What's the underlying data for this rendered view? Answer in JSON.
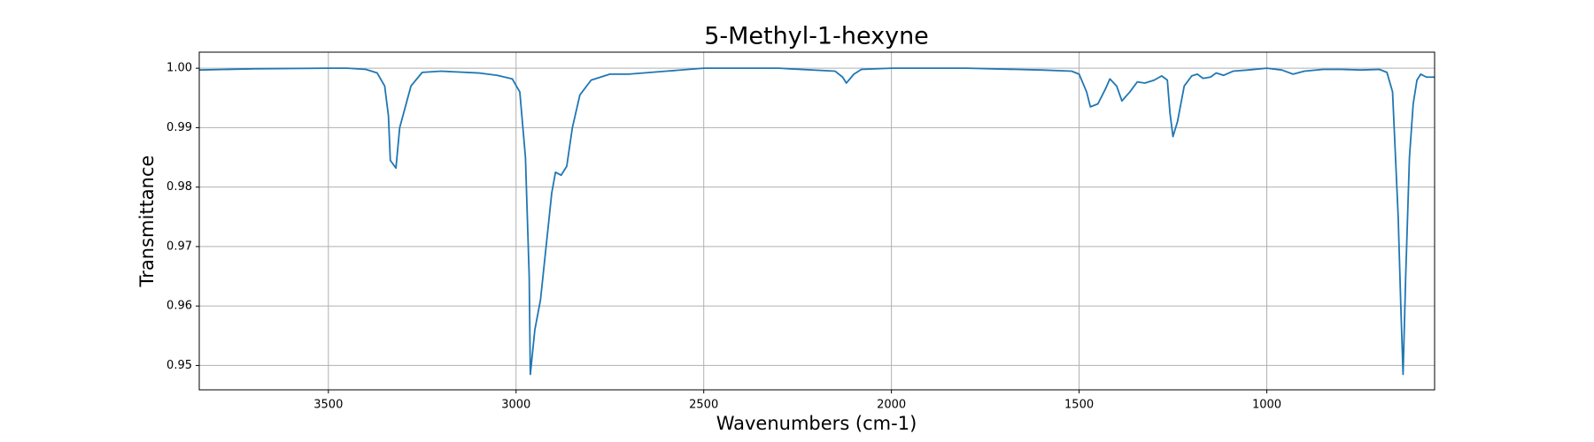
{
  "chart_data": {
    "type": "line",
    "title": "5-Methyl-1-hexyne",
    "x_label": "Wavenumbers (cm-1)",
    "y_label": "Transmittance",
    "x": [
      3844,
      3700,
      3500,
      3450,
      3400,
      3370,
      3350,
      3340,
      3335,
      3320,
      3310,
      3295,
      3280,
      3250,
      3200,
      3100,
      3050,
      3010,
      2990,
      2975,
      2965,
      2962,
      2950,
      2935,
      2920,
      2905,
      2895,
      2880,
      2865,
      2850,
      2830,
      2800,
      2750,
      2700,
      2600,
      2500,
      2300,
      2150,
      2130,
      2120,
      2100,
      2080,
      2000,
      1800,
      1600,
      1520,
      1500,
      1480,
      1470,
      1450,
      1430,
      1418,
      1400,
      1386,
      1365,
      1345,
      1325,
      1300,
      1280,
      1265,
      1258,
      1250,
      1238,
      1220,
      1200,
      1185,
      1170,
      1150,
      1135,
      1115,
      1090,
      1050,
      1000,
      960,
      930,
      900,
      850,
      800,
      750,
      700,
      680,
      665,
      650,
      643,
      637,
      630,
      620,
      610,
      600,
      590,
      575,
      553
    ],
    "values": [
      0.9997,
      0.9999,
      1.0,
      1.0,
      0.9998,
      0.9992,
      0.997,
      0.992,
      0.9845,
      0.9832,
      0.99,
      0.9935,
      0.997,
      0.9993,
      0.9995,
      0.9992,
      0.9988,
      0.9982,
      0.996,
      0.985,
      0.965,
      0.9485,
      0.956,
      0.961,
      0.97,
      0.979,
      0.9825,
      0.982,
      0.9835,
      0.99,
      0.9955,
      0.998,
      0.999,
      0.999,
      0.9995,
      1.0,
      1.0,
      0.9995,
      0.9985,
      0.9975,
      0.999,
      0.9998,
      1.0,
      1.0,
      0.9997,
      0.9995,
      0.999,
      0.996,
      0.9935,
      0.994,
      0.9965,
      0.9982,
      0.997,
      0.9945,
      0.996,
      0.9977,
      0.9975,
      0.998,
      0.9987,
      0.998,
      0.9925,
      0.9885,
      0.991,
      0.997,
      0.9987,
      0.999,
      0.9983,
      0.9985,
      0.9992,
      0.9988,
      0.9995,
      0.9997,
      1.0,
      0.9997,
      0.999,
      0.9995,
      0.9998,
      0.9998,
      0.9997,
      0.9998,
      0.9993,
      0.996,
      0.975,
      0.96,
      0.9485,
      0.965,
      0.985,
      0.994,
      0.998,
      0.999,
      0.9985,
      0.9985
    ],
    "color": "#1f77b4",
    "xlim": [
      3844,
      553
    ],
    "ylim": [
      0.9459,
      1.0027
    ],
    "xticks": [
      3500,
      3000,
      2500,
      2000,
      1500,
      1000
    ],
    "yticks": [
      0.95,
      0.96,
      0.97,
      0.98,
      0.99,
      {
        "value": 1,
        "label": "1.00"
      }
    ],
    "grid": true
  }
}
